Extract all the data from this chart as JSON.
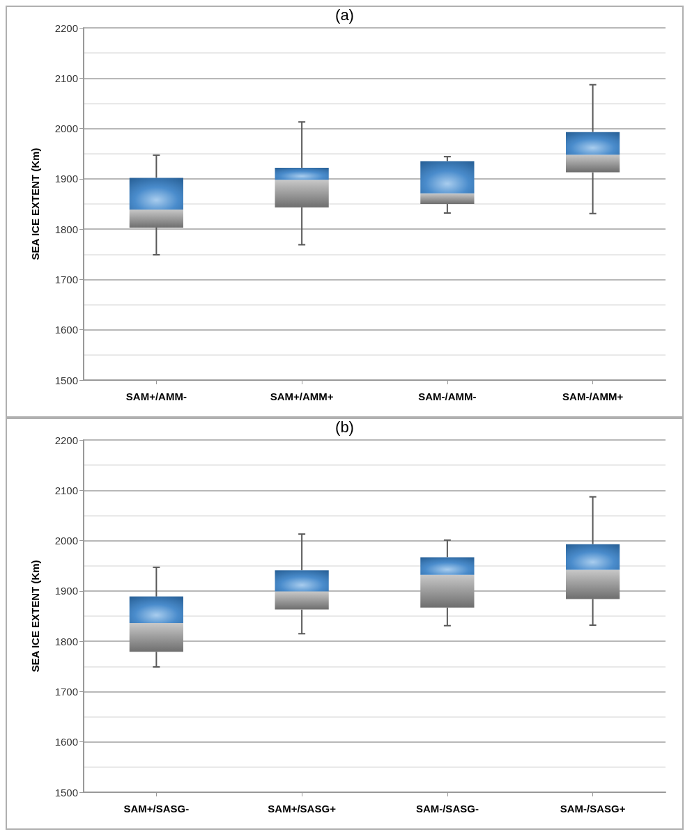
{
  "chart_data": [
    {
      "type": "box",
      "title": "(a)",
      "ylabel": "SEA ICE EXTENT (Km)",
      "categories": [
        "SAM+/AMM-",
        "SAM+/AMM+",
        "SAM-/AMM-",
        "SAM-/AMM+"
      ],
      "ylim": [
        1500,
        2200
      ],
      "yticks": [
        1500,
        1600,
        1700,
        1800,
        1900,
        2000,
        2100,
        2200
      ],
      "grid": "y",
      "series": [
        {
          "color": "#4a8ccc",
          "boxes": [
            {
              "low": 1749,
              "q1": 1803,
              "median": 1839,
              "q3": 1902,
              "high": 1947
            },
            {
              "low": 1769,
              "q1": 1843,
              "median": 1898,
              "q3": 1922,
              "high": 2013
            },
            {
              "low": 1832,
              "q1": 1850,
              "median": 1871,
              "q3": 1935,
              "high": 1944
            },
            {
              "low": 1831,
              "q1": 1913,
              "median": 1948,
              "q3": 1993,
              "high": 2087
            }
          ]
        }
      ]
    },
    {
      "type": "box",
      "title": "(b)",
      "ylabel": "SEA ICE EXTENT (Km)",
      "categories": [
        "SAM+/SASG-",
        "SAM+/SASG+",
        "SAM-/SASG-",
        "SAM-/SASG+"
      ],
      "ylim": [
        1500,
        2200
      ],
      "yticks": [
        1500,
        1600,
        1700,
        1800,
        1900,
        2000,
        2100,
        2200
      ],
      "grid": "y",
      "series": [
        {
          "color": "#4a8ccc",
          "boxes": [
            {
              "low": 1749,
              "q1": 1779,
              "median": 1836,
              "q3": 1889,
              "high": 1947
            },
            {
              "low": 1815,
              "q1": 1863,
              "median": 1899,
              "q3": 1941,
              "high": 2013
            },
            {
              "low": 1831,
              "q1": 1867,
              "median": 1932,
              "q3": 1967,
              "high": 2001
            },
            {
              "low": 1832,
              "q1": 1884,
              "median": 1942,
              "q3": 1993,
              "high": 2087
            }
          ]
        }
      ]
    }
  ]
}
